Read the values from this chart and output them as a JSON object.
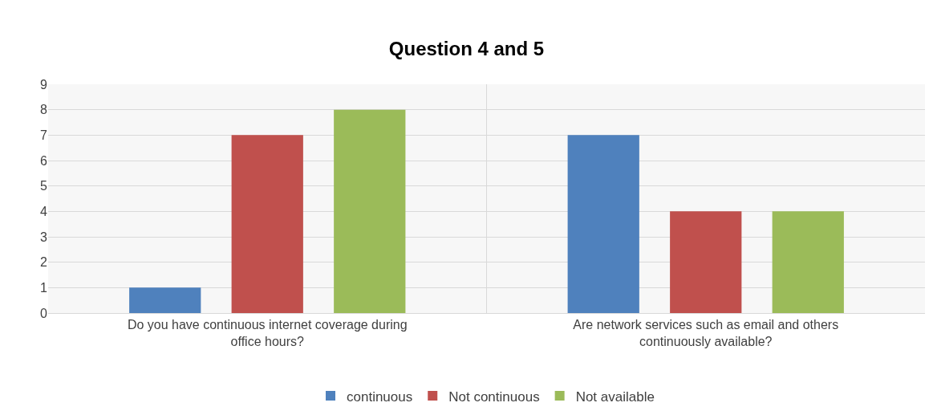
{
  "chart_data": {
    "type": "bar",
    "title": "Question 4 and 5",
    "categories": [
      "Do you have continuous internet coverage during office hours?",
      "Are network services such as email and others continuously available?"
    ],
    "series": [
      {
        "name": "continuous",
        "color": "#4f81bd",
        "values": [
          1,
          7
        ]
      },
      {
        "name": "Not continuous",
        "color": "#c0504d",
        "values": [
          7,
          4
        ]
      },
      {
        "name": "Not available",
        "color": "#9bbb59",
        "values": [
          8,
          4
        ]
      }
    ],
    "ylim": [
      0,
      9
    ],
    "yticks": [
      0,
      1,
      2,
      3,
      4,
      5,
      6,
      7,
      8,
      9
    ],
    "grid": true,
    "legend": "bottom"
  }
}
